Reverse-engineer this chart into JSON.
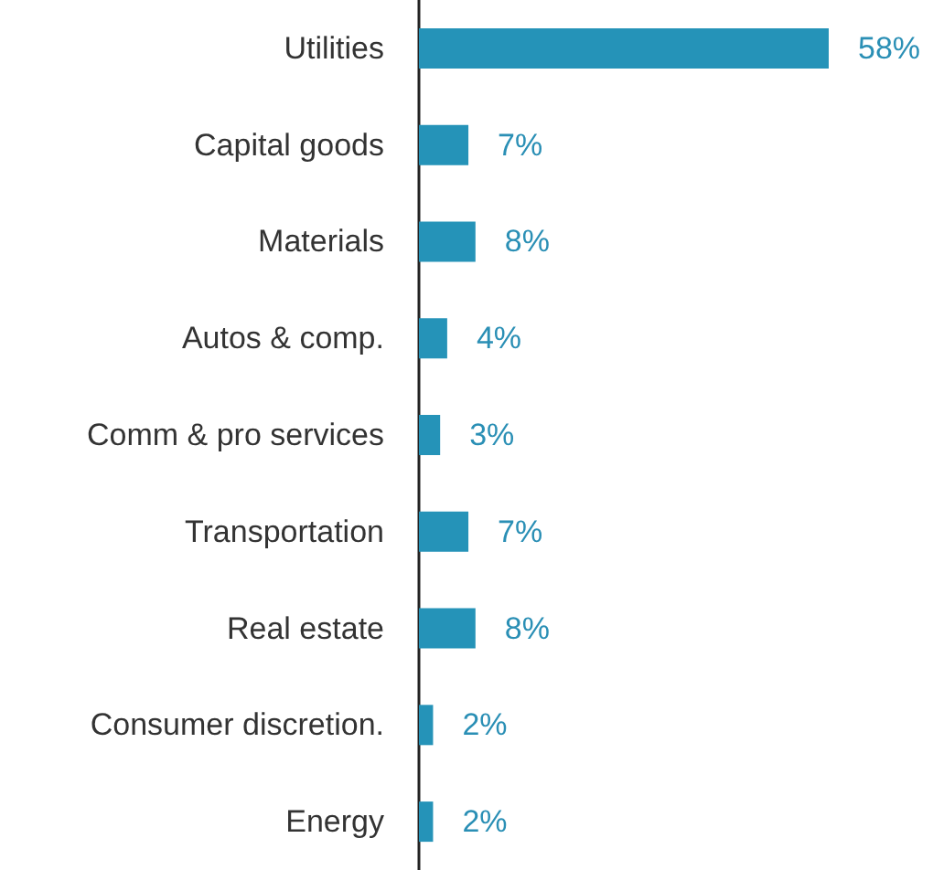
{
  "chart_data": {
    "type": "bar",
    "orientation": "horizontal",
    "categories": [
      "Utilities",
      "Capital goods",
      "Materials",
      "Autos & comp.",
      "Comm & pro services",
      "Transportation",
      "Real estate",
      "Consumer discretion.",
      "Energy"
    ],
    "values": [
      58,
      7,
      8,
      4,
      3,
      7,
      8,
      2,
      2
    ],
    "value_labels": [
      "58%",
      "7%",
      "8%",
      "4%",
      "3%",
      "7%",
      "8%",
      "2%",
      "2%"
    ],
    "color": "#2593b8",
    "grid": false
  }
}
